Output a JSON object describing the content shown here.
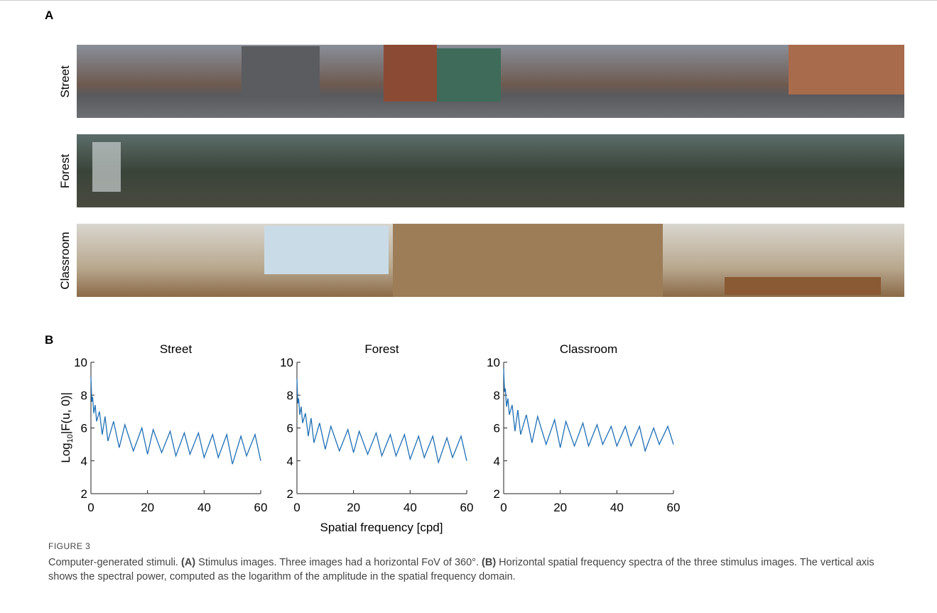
{
  "panel_a": {
    "label": "A",
    "images": [
      "Street",
      "Forest",
      "Classroom"
    ]
  },
  "panel_b": {
    "label": "B",
    "shared_ylabel": {
      "base": "Log",
      "sub": "10",
      "rest": "|F(u, 0)|"
    },
    "shared_xlabel": "Spatial frequency [cpd]"
  },
  "chart_data": [
    {
      "type": "line",
      "title": "Street",
      "x": [
        0,
        0.3,
        0.6,
        1,
        1.5,
        2,
        3,
        4,
        5,
        6,
        8,
        10,
        12,
        15,
        18,
        20,
        22,
        25,
        28,
        30,
        33,
        35,
        38,
        40,
        43,
        45,
        48,
        50,
        53,
        55,
        58,
        60
      ],
      "series": [
        {
          "color": "#1f6fb5",
          "values": [
            9.1,
            7.6,
            7.9,
            6.9,
            7.4,
            6.4,
            7.0,
            5.6,
            6.7,
            5.2,
            6.4,
            4.8,
            6.2,
            4.6,
            6.0,
            4.4,
            5.9,
            4.5,
            5.8,
            4.3,
            5.7,
            4.4,
            5.7,
            4.2,
            5.6,
            4.2,
            5.6,
            3.8,
            5.5,
            4.3,
            5.6,
            4.0
          ]
        }
      ],
      "xlim": [
        0,
        60
      ],
      "xticks": [
        0,
        20,
        40,
        60
      ],
      "ylim": [
        2,
        10
      ],
      "yticks": [
        2,
        4,
        6,
        8,
        10
      ]
    },
    {
      "type": "line",
      "title": "Forest",
      "x": [
        0,
        0.3,
        0.6,
        1,
        1.5,
        2,
        3,
        4,
        5,
        6,
        8,
        10,
        12,
        15,
        18,
        20,
        22,
        25,
        28,
        30,
        33,
        35,
        38,
        40,
        43,
        45,
        48,
        50,
        53,
        55,
        58,
        60
      ],
      "series": [
        {
          "color": "#1f6fb5",
          "values": [
            9.0,
            7.5,
            7.8,
            6.8,
            7.3,
            6.3,
            6.9,
            5.5,
            6.6,
            5.1,
            6.3,
            4.7,
            6.1,
            4.6,
            5.9,
            4.5,
            5.8,
            4.4,
            5.7,
            4.3,
            5.6,
            4.3,
            5.6,
            4.1,
            5.5,
            4.2,
            5.5,
            3.9,
            5.4,
            4.2,
            5.5,
            4.0
          ]
        }
      ],
      "xlim": [
        0,
        60
      ],
      "xticks": [
        0,
        20,
        40,
        60
      ],
      "ylim": [
        2,
        10
      ],
      "yticks": [
        2,
        4,
        6,
        8,
        10
      ]
    },
    {
      "type": "line",
      "title": "Classroom",
      "x": [
        0,
        0.3,
        0.6,
        1,
        1.5,
        2,
        3,
        4,
        5,
        6,
        8,
        10,
        12,
        15,
        18,
        20,
        22,
        25,
        28,
        30,
        33,
        35,
        38,
        40,
        43,
        45,
        48,
        50,
        53,
        55,
        58,
        60
      ],
      "series": [
        {
          "color": "#1f6fb5",
          "values": [
            9.6,
            8.2,
            8.4,
            7.3,
            7.8,
            6.8,
            7.4,
            5.8,
            7.1,
            5.6,
            6.8,
            5.1,
            6.7,
            5.0,
            6.5,
            4.8,
            6.4,
            4.9,
            6.3,
            4.9,
            6.2,
            5.0,
            6.1,
            4.9,
            6.1,
            4.9,
            6.1,
            4.6,
            6.0,
            5.0,
            6.1,
            5.0
          ]
        }
      ],
      "xlim": [
        0,
        60
      ],
      "xticks": [
        0,
        20,
        40,
        60
      ],
      "ylim": [
        2,
        10
      ],
      "yticks": [
        2,
        4,
        6,
        8,
        10
      ]
    }
  ],
  "caption": {
    "figure_number": "FIGURE 3",
    "intro": "Computer-generated stimuli. ",
    "a_label": "(A)",
    "a_text": " Stimulus images. Three images had a horizontal FoV of 360°. ",
    "b_label": "(B)",
    "b_text": " Horizontal spatial frequency spectra of the three stimulus images. The vertical axis shows the spectral power, computed as the logarithm of the amplitude in the spatial frequency domain."
  }
}
